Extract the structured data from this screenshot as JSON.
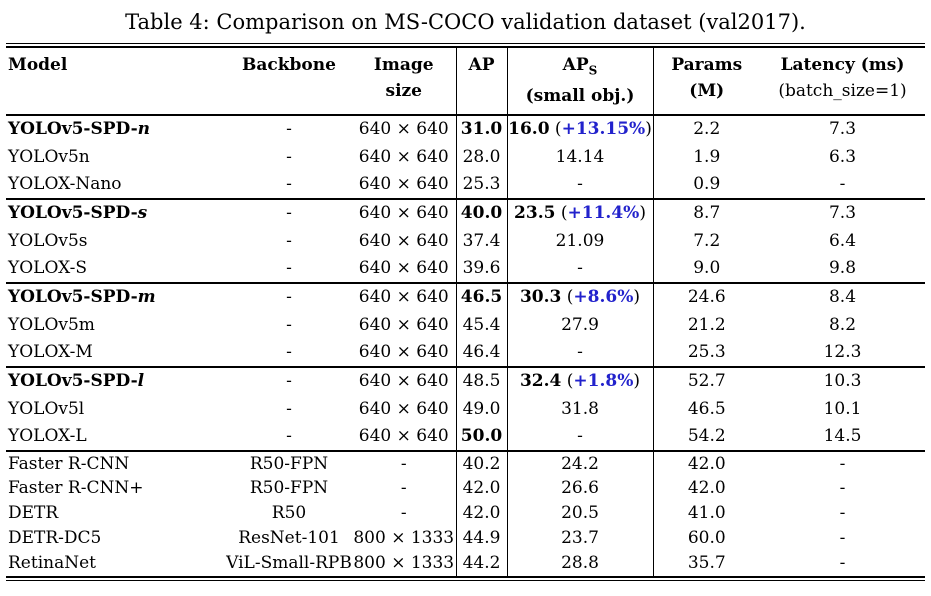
{
  "title": "Table 4: Comparison on MS-COCO validation dataset (val2017).",
  "colors": {
    "accent_blue": "#2222cc",
    "text": "#000000",
    "rule": "#000000"
  },
  "table": {
    "header": {
      "model": "Model",
      "backbone": "Backbone",
      "image_line1": "Image",
      "image_line2": "size",
      "ap": "AP",
      "aps_main": "AP",
      "aps_sub": "S",
      "aps_line2": "(small obj.)",
      "params_line1": "Params",
      "params_line2": "(M)",
      "latency_line1": "Latency (ms)",
      "latency_line2": "(batch_size=1)"
    },
    "groups": [
      {
        "rows": [
          {
            "model": "YOLOv5-SPD-",
            "model_italic": "n",
            "model_bold": true,
            "backbone": "-",
            "image_size": "640 × 640",
            "ap": "31.0",
            "ap_bold": true,
            "aps": "16.0",
            "aps_bold": true,
            "aps_delta": "+13.15%",
            "params": "2.2",
            "latency": "7.3"
          },
          {
            "model": "YOLOv5n",
            "model_italic": "",
            "model_bold": false,
            "backbone": "-",
            "image_size": "640 × 640",
            "ap": "28.0",
            "ap_bold": false,
            "aps": "14.14",
            "aps_bold": false,
            "aps_delta": "",
            "params": "1.9",
            "latency": "6.3"
          },
          {
            "model": "YOLOX-Nano",
            "model_italic": "",
            "model_bold": false,
            "backbone": "-",
            "image_size": "640 × 640",
            "ap": "25.3",
            "ap_bold": false,
            "aps": "-",
            "aps_bold": false,
            "aps_delta": "",
            "params": "0.9",
            "latency": "-"
          }
        ]
      },
      {
        "rows": [
          {
            "model": "YOLOv5-SPD-",
            "model_italic": "s",
            "model_bold": true,
            "backbone": "-",
            "image_size": "640 × 640",
            "ap": "40.0",
            "ap_bold": true,
            "aps": "23.5",
            "aps_bold": true,
            "aps_delta": "+11.4%",
            "params": "8.7",
            "latency": "7.3"
          },
          {
            "model": "YOLOv5s",
            "model_italic": "",
            "model_bold": false,
            "backbone": "-",
            "image_size": "640 × 640",
            "ap": "37.4",
            "ap_bold": false,
            "aps": "21.09",
            "aps_bold": false,
            "aps_delta": "",
            "params": "7.2",
            "latency": "6.4"
          },
          {
            "model": "YOLOX-S",
            "model_italic": "",
            "model_bold": false,
            "backbone": "-",
            "image_size": "640 × 640",
            "ap": "39.6",
            "ap_bold": false,
            "aps": "-",
            "aps_bold": false,
            "aps_delta": "",
            "params": "9.0",
            "latency": "9.8"
          }
        ]
      },
      {
        "rows": [
          {
            "model": "YOLOv5-SPD-",
            "model_italic": "m",
            "model_bold": true,
            "backbone": "-",
            "image_size": "640 × 640",
            "ap": "46.5",
            "ap_bold": true,
            "aps": "30.3",
            "aps_bold": true,
            "aps_delta": "+8.6%",
            "params": "24.6",
            "latency": "8.4"
          },
          {
            "model": "YOLOv5m",
            "model_italic": "",
            "model_bold": false,
            "backbone": "-",
            "image_size": "640 × 640",
            "ap": "45.4",
            "ap_bold": false,
            "aps": "27.9",
            "aps_bold": false,
            "aps_delta": "",
            "params": "21.2",
            "latency": "8.2"
          },
          {
            "model": "YOLOX-M",
            "model_italic": "",
            "model_bold": false,
            "backbone": "-",
            "image_size": "640 × 640",
            "ap": "46.4",
            "ap_bold": false,
            "aps": "-",
            "aps_bold": false,
            "aps_delta": "",
            "params": "25.3",
            "latency": "12.3"
          }
        ]
      },
      {
        "rows": [
          {
            "model": "YOLOv5-SPD-",
            "model_italic": "l",
            "model_bold": true,
            "backbone": "-",
            "image_size": "640 × 640",
            "ap": "48.5",
            "ap_bold": false,
            "aps": "32.4",
            "aps_bold": true,
            "aps_delta": "+1.8%",
            "params": "52.7",
            "latency": "10.3"
          },
          {
            "model": "YOLOv5l",
            "model_italic": "",
            "model_bold": false,
            "backbone": "-",
            "image_size": "640 × 640",
            "ap": "49.0",
            "ap_bold": false,
            "aps": "31.8",
            "aps_bold": false,
            "aps_delta": "",
            "params": "46.5",
            "latency": "10.1"
          },
          {
            "model": "YOLOX-L",
            "model_italic": "",
            "model_bold": false,
            "backbone": "-",
            "image_size": "640 × 640",
            "ap": "50.0",
            "ap_bold": true,
            "aps": "-",
            "aps_bold": false,
            "aps_delta": "",
            "params": "54.2",
            "latency": "14.5"
          }
        ]
      },
      {
        "small": true,
        "rows": [
          {
            "model": "Faster R-CNN",
            "model_italic": "",
            "model_bold": false,
            "backbone": "R50-FPN",
            "image_size": "-",
            "ap": "40.2",
            "ap_bold": false,
            "aps": "24.2",
            "aps_bold": false,
            "aps_delta": "",
            "params": "42.0",
            "latency": "-"
          },
          {
            "model": "Faster R-CNN+",
            "model_italic": "",
            "model_bold": false,
            "backbone": "R50-FPN",
            "image_size": "-",
            "ap": "42.0",
            "ap_bold": false,
            "aps": "26.6",
            "aps_bold": false,
            "aps_delta": "",
            "params": "42.0",
            "latency": "-"
          },
          {
            "model": "DETR",
            "model_italic": "",
            "model_bold": false,
            "backbone": "R50",
            "image_size": "-",
            "ap": "42.0",
            "ap_bold": false,
            "aps": "20.5",
            "aps_bold": false,
            "aps_delta": "",
            "params": "41.0",
            "latency": "-"
          },
          {
            "model": "DETR-DC5",
            "model_italic": "",
            "model_bold": false,
            "backbone": "ResNet-101",
            "image_size": "800 × 1333",
            "ap": "44.9",
            "ap_bold": false,
            "aps": "23.7",
            "aps_bold": false,
            "aps_delta": "",
            "params": "60.0",
            "latency": "-"
          },
          {
            "model": "RetinaNet",
            "model_italic": "",
            "model_bold": false,
            "backbone": "ViL-Small-RPB",
            "image_size": "800 × 1333",
            "ap": "44.2",
            "ap_bold": false,
            "aps": "28.8",
            "aps_bold": false,
            "aps_delta": "",
            "params": "35.7",
            "latency": "-"
          }
        ]
      }
    ]
  }
}
